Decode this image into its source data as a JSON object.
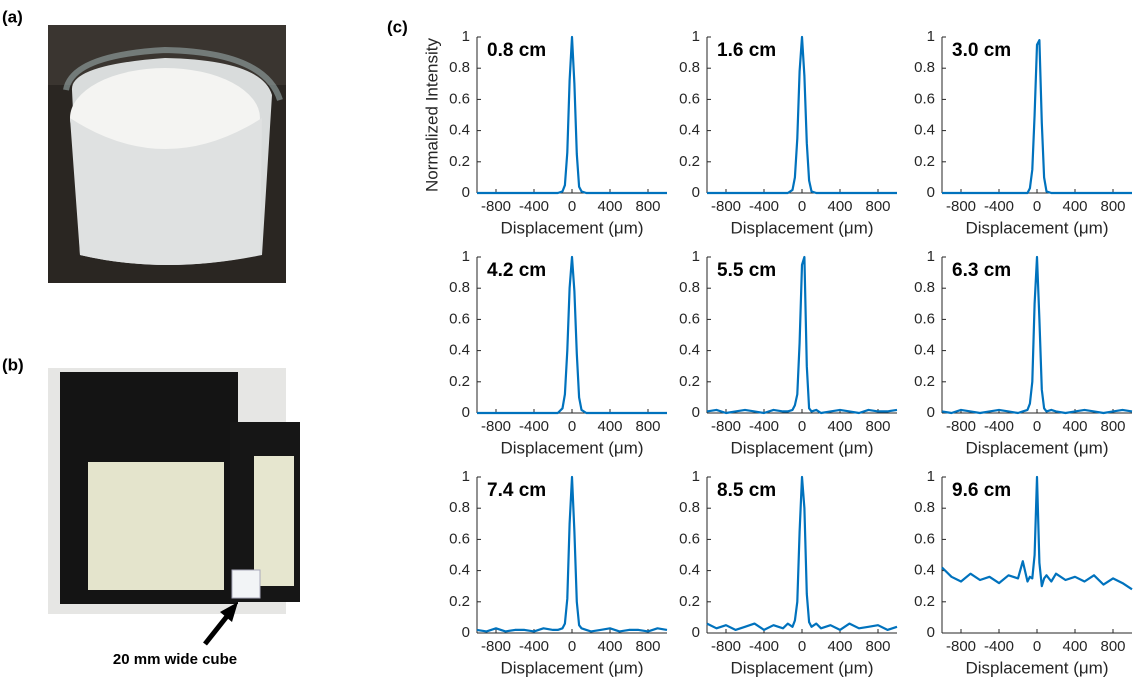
{
  "panel_labels": [
    "(a)",
    "(b)",
    "(c)"
  ],
  "photo_caption": "20 mm wide cube",
  "chart_data": [
    {
      "type": "line",
      "annotation": "0.8 cm",
      "x_label": "Displacement (μm)",
      "y_label": "Normalized Intensity",
      "xlim": [
        -1000,
        1000
      ],
      "ylim": [
        0,
        1
      ],
      "xticks": [
        -800,
        -400,
        0,
        400,
        800
      ],
      "yticks": [
        0,
        0.2,
        0.4,
        0.6,
        0.8,
        1
      ],
      "x": [
        -1000,
        -900,
        -800,
        -700,
        -600,
        -500,
        -400,
        -300,
        -200,
        -150,
        -100,
        -75,
        -50,
        -25,
        0,
        25,
        50,
        75,
        100,
        150,
        200,
        300,
        400,
        500,
        600,
        700,
        800,
        900,
        1000
      ],
      "series": [
        {
          "color": "#0072bd",
          "values": [
            0,
            0,
            0,
            0,
            0,
            0,
            0,
            0,
            0,
            0,
            0.01,
            0.05,
            0.26,
            0.72,
            1,
            0.7,
            0.25,
            0.04,
            0.01,
            0,
            0,
            0,
            0,
            0,
            0,
            0,
            0,
            0,
            0
          ]
        }
      ]
    },
    {
      "type": "line",
      "annotation": "1.6 cm",
      "x_label": "Displacement (μm)",
      "xlim": [
        -1000,
        1000
      ],
      "ylim": [
        0,
        1
      ],
      "xticks": [
        -800,
        -400,
        0,
        400,
        800
      ],
      "yticks": [
        0,
        0.2,
        0.4,
        0.6,
        0.8,
        1
      ],
      "x": [
        -1000,
        -900,
        -800,
        -700,
        -600,
        -500,
        -400,
        -300,
        -200,
        -150,
        -100,
        -75,
        -50,
        -25,
        0,
        25,
        50,
        75,
        100,
        150,
        200,
        300,
        400,
        500,
        600,
        700,
        800,
        900,
        1000
      ],
      "series": [
        {
          "color": "#0072bd",
          "values": [
            0,
            0,
            0,
            0,
            0,
            0,
            0,
            0,
            0,
            0,
            0.02,
            0.1,
            0.35,
            0.78,
            1,
            0.75,
            0.32,
            0.08,
            0.01,
            0,
            0,
            0,
            0,
            0,
            0,
            0,
            0,
            0,
            0
          ]
        }
      ]
    },
    {
      "type": "line",
      "annotation": "3.0 cm",
      "x_label": "Displacement (μm)",
      "xlim": [
        -1000,
        1000
      ],
      "ylim": [
        0,
        1
      ],
      "xticks": [
        -800,
        -400,
        0,
        400,
        800
      ],
      "yticks": [
        0,
        0.2,
        0.4,
        0.6,
        0.8,
        1
      ],
      "x": [
        -1000,
        -900,
        -800,
        -700,
        -600,
        -500,
        -400,
        -300,
        -200,
        -150,
        -100,
        -75,
        -50,
        -25,
        0,
        25,
        50,
        75,
        100,
        150,
        200,
        300,
        400,
        500,
        600,
        700,
        800,
        900,
        1000
      ],
      "series": [
        {
          "color": "#0072bd",
          "values": [
            0,
            0,
            0,
            0,
            0,
            0,
            0,
            0,
            0,
            0,
            0,
            0.03,
            0.15,
            0.5,
            0.95,
            0.98,
            0.45,
            0.1,
            0.01,
            0,
            0,
            0,
            0,
            0,
            0,
            0,
            0,
            0,
            0
          ]
        }
      ]
    },
    {
      "type": "line",
      "annotation": "4.2 cm",
      "x_label": "Displacement (μm)",
      "xlim": [
        -1000,
        1000
      ],
      "ylim": [
        0,
        1
      ],
      "xticks": [
        -800,
        -400,
        0,
        400,
        800
      ],
      "yticks": [
        0,
        0.2,
        0.4,
        0.6,
        0.8,
        1
      ],
      "x": [
        -1000,
        -900,
        -800,
        -700,
        -600,
        -500,
        -400,
        -300,
        -200,
        -150,
        -100,
        -75,
        -50,
        -25,
        0,
        25,
        50,
        75,
        100,
        150,
        200,
        300,
        400,
        500,
        600,
        700,
        800,
        900,
        1000
      ],
      "series": [
        {
          "color": "#0072bd",
          "values": [
            0,
            0,
            0,
            0,
            0,
            0,
            0,
            0,
            0,
            0,
            0.03,
            0.12,
            0.4,
            0.8,
            1,
            0.78,
            0.38,
            0.1,
            0.02,
            0,
            0,
            0,
            0,
            0,
            0,
            0,
            0,
            0,
            0
          ]
        }
      ]
    },
    {
      "type": "line",
      "annotation": "5.5 cm",
      "x_label": "Displacement (μm)",
      "xlim": [
        -1000,
        1000
      ],
      "ylim": [
        0,
        1
      ],
      "xticks": [
        -800,
        -400,
        0,
        400,
        800
      ],
      "yticks": [
        0,
        0.2,
        0.4,
        0.6,
        0.8,
        1
      ],
      "x": [
        -1000,
        -900,
        -800,
        -700,
        -600,
        -500,
        -400,
        -300,
        -200,
        -150,
        -100,
        -75,
        -50,
        -25,
        0,
        25,
        50,
        75,
        100,
        150,
        200,
        300,
        400,
        500,
        600,
        700,
        800,
        900,
        1000
      ],
      "series": [
        {
          "color": "#0072bd",
          "values": [
            0.01,
            0.02,
            0,
            0.01,
            0.02,
            0.01,
            0,
            0.02,
            0.01,
            0.01,
            0.02,
            0.05,
            0.12,
            0.45,
            0.95,
            1,
            0.3,
            0.03,
            0.01,
            0.02,
            0,
            0.01,
            0.02,
            0.01,
            0,
            0.02,
            0.01,
            0.01,
            0.02
          ]
        }
      ]
    },
    {
      "type": "line",
      "annotation": "6.3 cm",
      "x_label": "Displacement (μm)",
      "xlim": [
        -1000,
        1000
      ],
      "ylim": [
        0,
        1
      ],
      "xticks": [
        -800,
        -400,
        0,
        400,
        800
      ],
      "yticks": [
        0,
        0.2,
        0.4,
        0.6,
        0.8,
        1
      ],
      "x": [
        -1000,
        -900,
        -800,
        -700,
        -600,
        -500,
        -400,
        -300,
        -200,
        -150,
        -100,
        -75,
        -50,
        -25,
        0,
        25,
        50,
        75,
        100,
        150,
        200,
        300,
        400,
        500,
        600,
        700,
        800,
        900,
        1000
      ],
      "series": [
        {
          "color": "#0072bd",
          "values": [
            0.01,
            0,
            0.02,
            0.01,
            0,
            0.01,
            0.02,
            0.01,
            0,
            0.01,
            0.02,
            0.06,
            0.2,
            0.7,
            1,
            0.6,
            0.15,
            0.03,
            0.01,
            0.02,
            0.01,
            0,
            0.01,
            0.02,
            0.01,
            0,
            0.01,
            0.02,
            0.01
          ]
        }
      ]
    },
    {
      "type": "line",
      "annotation": "7.4 cm",
      "x_label": "Displacement (μm)",
      "xlim": [
        -1000,
        1000
      ],
      "ylim": [
        0,
        1
      ],
      "xticks": [
        -800,
        -400,
        0,
        400,
        800
      ],
      "yticks": [
        0,
        0.2,
        0.4,
        0.6,
        0.8,
        1
      ],
      "x": [
        -1000,
        -900,
        -800,
        -700,
        -600,
        -500,
        -400,
        -300,
        -200,
        -150,
        -100,
        -75,
        -50,
        -25,
        0,
        25,
        50,
        75,
        100,
        150,
        200,
        300,
        400,
        500,
        600,
        700,
        800,
        900,
        1000
      ],
      "series": [
        {
          "color": "#0072bd",
          "values": [
            0.02,
            0.01,
            0.03,
            0.01,
            0.02,
            0.02,
            0.01,
            0.03,
            0.02,
            0.02,
            0.03,
            0.06,
            0.22,
            0.7,
            1,
            0.65,
            0.2,
            0.05,
            0.03,
            0.02,
            0.01,
            0.02,
            0.03,
            0.01,
            0.02,
            0.02,
            0.01,
            0.03,
            0.02
          ]
        }
      ]
    },
    {
      "type": "line",
      "annotation": "8.5 cm",
      "x_label": "Displacement (μm)",
      "xlim": [
        -1000,
        1000
      ],
      "ylim": [
        0,
        1
      ],
      "xticks": [
        -800,
        -400,
        0,
        400,
        800
      ],
      "yticks": [
        0,
        0.2,
        0.4,
        0.6,
        0.8,
        1
      ],
      "x": [
        -1000,
        -900,
        -800,
        -700,
        -600,
        -500,
        -400,
        -300,
        -200,
        -150,
        -100,
        -75,
        -50,
        -25,
        0,
        25,
        50,
        75,
        100,
        150,
        200,
        300,
        400,
        500,
        600,
        700,
        800,
        900,
        1000
      ],
      "series": [
        {
          "color": "#0072bd",
          "values": [
            0.06,
            0.03,
            0.05,
            0.02,
            0.04,
            0.06,
            0.02,
            0.05,
            0.03,
            0.06,
            0.04,
            0.08,
            0.2,
            0.65,
            1,
            0.8,
            0.25,
            0.07,
            0.04,
            0.06,
            0.03,
            0.05,
            0.02,
            0.06,
            0.03,
            0.04,
            0.05,
            0.02,
            0.04
          ]
        }
      ]
    },
    {
      "type": "line",
      "annotation": "9.6 cm",
      "x_label": "Displacement (μm)",
      "xlim": [
        -1000,
        1000
      ],
      "ylim": [
        0,
        1
      ],
      "xticks": [
        -800,
        -400,
        0,
        400,
        800
      ],
      "yticks": [
        0,
        0.2,
        0.4,
        0.6,
        0.8,
        1
      ],
      "x": [
        -1000,
        -900,
        -800,
        -700,
        -600,
        -500,
        -400,
        -300,
        -200,
        -150,
        -100,
        -75,
        -50,
        -25,
        0,
        25,
        50,
        75,
        100,
        150,
        200,
        300,
        400,
        500,
        600,
        700,
        800,
        900,
        1000
      ],
      "series": [
        {
          "color": "#0072bd",
          "values": [
            0.42,
            0.36,
            0.33,
            0.38,
            0.34,
            0.36,
            0.32,
            0.37,
            0.35,
            0.46,
            0.33,
            0.36,
            0.35,
            0.5,
            1,
            0.45,
            0.3,
            0.35,
            0.37,
            0.33,
            0.38,
            0.34,
            0.36,
            0.33,
            0.37,
            0.31,
            0.35,
            0.32,
            0.28
          ]
        }
      ]
    }
  ]
}
